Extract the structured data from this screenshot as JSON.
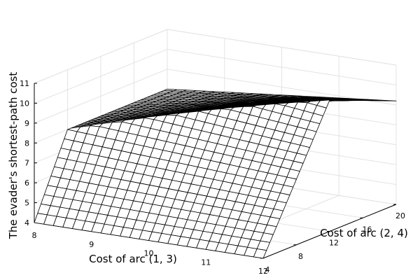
{
  "chart_data": {
    "type": "surface",
    "title": "",
    "xlabel": "Cost of arc (1, 3)",
    "ylabel": "Cost of arc (2, 4)",
    "zlabel": "The evader's shortest-path cost",
    "xlim": [
      8,
      12
    ],
    "ylim": [
      4,
      20
    ],
    "zlim": [
      4,
      11
    ],
    "x_ticks": [
      8,
      9,
      10,
      11,
      12
    ],
    "y_ticks": [
      4,
      8,
      12,
      16,
      20
    ],
    "z_ticks": [
      4,
      5,
      6,
      7,
      8,
      9,
      10,
      11
    ],
    "grid": true,
    "legend": "none",
    "surface": {
      "function": "z = min(x, y) - ((y - 4) / 16) * (x - 8) * 0.7",
      "x_samples": 25,
      "y_samples": 41
    },
    "colors": {
      "mesh_line": "#000000",
      "mesh_fill": "#ffffff",
      "grid": "#e3e3e3",
      "axis": "#000000"
    }
  }
}
